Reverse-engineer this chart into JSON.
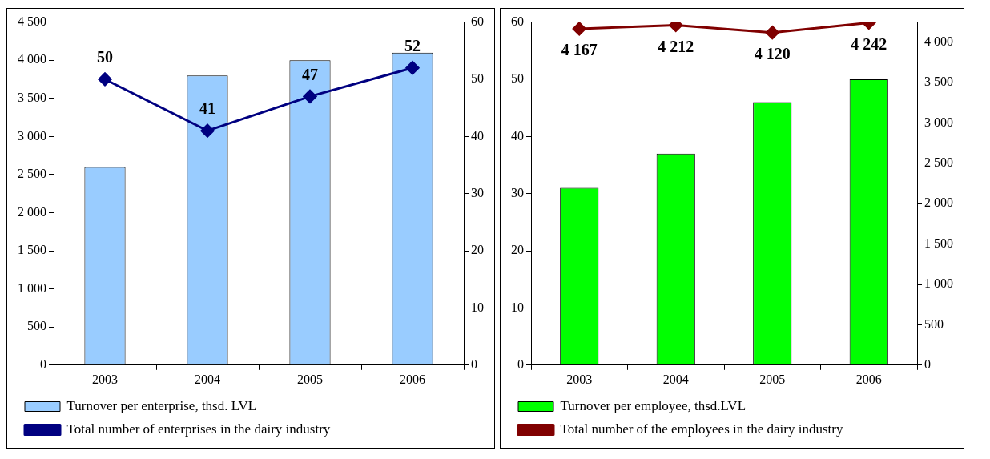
{
  "chart_data": [
    {
      "type": "bar",
      "categories": [
        "2003",
        "2004",
        "2005",
        "2006"
      ],
      "series": [
        {
          "name": "Turnover per enterprise, thsd. LVL",
          "color": "#99ccff",
          "values": [
            2600,
            3800,
            4000,
            4100
          ]
        },
        {
          "name": "Total number of enterprises in the dairy industry",
          "type": "line",
          "axis": "y2",
          "color": "#000080",
          "marker": "diamond",
          "values": [
            50,
            41,
            47,
            52
          ],
          "value_labels": [
            "50",
            "41",
            "47",
            "52"
          ]
        }
      ],
      "ylim": [
        0,
        4500
      ],
      "yticks": [
        {
          "value": 0,
          "label": "0"
        },
        {
          "value": 500,
          "label": "500"
        },
        {
          "value": 1000,
          "label": "1 000"
        },
        {
          "value": 1500,
          "label": "1 500"
        },
        {
          "value": 2000,
          "label": "2 000"
        },
        {
          "value": 2500,
          "label": "2 500"
        },
        {
          "value": 3000,
          "label": "3 000"
        },
        {
          "value": 3500,
          "label": "3 500"
        },
        {
          "value": 4000,
          "label": "4 000"
        },
        {
          "value": 4500,
          "label": "4 500"
        }
      ],
      "y2lim": [
        0,
        60
      ],
      "y2ticks": [
        0,
        10,
        20,
        30,
        40,
        50,
        60
      ],
      "legend": "bottom"
    },
    {
      "type": "bar",
      "categories": [
        "2003",
        "2004",
        "2005",
        "2006"
      ],
      "series": [
        {
          "name": "Turnover per employee, thsd.LVL",
          "color": "#00ff00",
          "values": [
            31,
            37,
            46,
            50
          ]
        },
        {
          "name": "Total number of the employees in the dairy industry",
          "type": "line",
          "axis": "y2",
          "color": "#800000",
          "marker": "diamond",
          "values": [
            4167,
            4212,
            4120,
            4242
          ],
          "value_labels": [
            "4 167",
            "4 212",
            "4 120",
            "4 242"
          ]
        }
      ],
      "ylim": [
        0,
        60
      ],
      "yticks": [
        0,
        10,
        20,
        30,
        40,
        50,
        60
      ],
      "y2lim": [
        0,
        4250
      ],
      "y2ticks": [
        0,
        500,
        {
          "value": 1000,
          "label": "1 000"
        },
        {
          "value": 1500,
          "label": "1 500"
        },
        {
          "value": 2000,
          "label": "2 000"
        },
        {
          "value": 2500,
          "label": "2 500"
        },
        {
          "value": 3000,
          "label": "3 000"
        },
        {
          "value": 3500,
          "label": "3 500"
        },
        {
          "value": 4000,
          "label": "4 000"
        }
      ],
      "legend": "bottom"
    }
  ]
}
